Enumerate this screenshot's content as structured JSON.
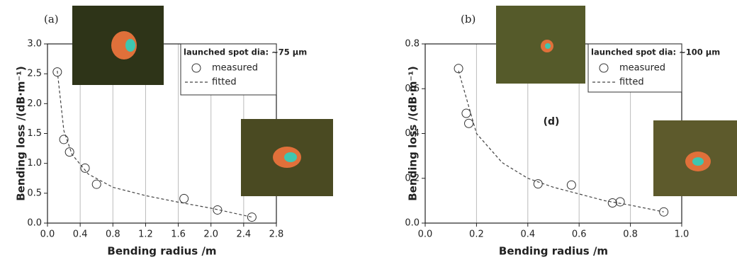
{
  "chart_data": [
    {
      "type": "scatter",
      "panel_label": "(a)",
      "xlabel": "Bending radius  /m",
      "ylabel": "Bending loss  /(dB·m⁻¹)",
      "legend_title": "launched spot dia: ~75 μm",
      "xlim": [
        0,
        2.8
      ],
      "ylim": [
        0,
        3.0
      ],
      "xticks": [
        {
          "value": 0,
          "label": "0.0"
        },
        0.4,
        0.8,
        {
          "value": 1.2,
          "label": "1.2"
        },
        1.6,
        {
          "value": 2.0,
          "label": "2.0"
        },
        2.4,
        2.8
      ],
      "yticks": [
        {
          "value": 0,
          "label": "0.0"
        },
        0.5,
        {
          "value": 1.0,
          "label": "1.0"
        },
        1.5,
        {
          "value": 2.0,
          "label": "2.0"
        },
        2.5,
        {
          "value": 3.0,
          "label": "3.0"
        }
      ],
      "grid": "x",
      "series": [
        {
          "name": "measured",
          "kind": "points",
          "color": "#333333",
          "x": [
            0.12,
            0.2,
            0.27,
            0.46,
            0.6,
            1.67,
            2.08,
            2.5
          ],
          "values": [
            2.53,
            1.4,
            1.19,
            0.92,
            0.65,
            0.41,
            0.22,
            0.1
          ]
        },
        {
          "name": "fitted",
          "kind": "dashed-line",
          "color": "#444444",
          "x": [
            0.12,
            0.2,
            0.3,
            0.5,
            0.8,
            1.2,
            1.6,
            2.0,
            2.5
          ],
          "values": [
            2.55,
            1.55,
            1.15,
            0.82,
            0.6,
            0.46,
            0.35,
            0.25,
            0.1
          ]
        }
      ]
    },
    {
      "type": "scatter",
      "panel_label": "(b)",
      "xlabel": "Bending radius  /m",
      "ylabel": "Bending loss  /(dB·m⁻¹)",
      "legend_title": "launched spot dia: ~100 μm",
      "annotation": "(d)",
      "xlim": [
        0,
        1.0
      ],
      "ylim": [
        0,
        0.8
      ],
      "xticks": [
        {
          "value": 0,
          "label": "0.0"
        },
        0.2,
        0.4,
        0.6,
        0.8,
        {
          "value": 1.0,
          "label": "1.0"
        }
      ],
      "yticks": [
        {
          "value": 0,
          "label": "0.0"
        },
        0.2,
        0.4,
        0.6,
        0.8
      ],
      "grid": "x",
      "series": [
        {
          "name": "measured",
          "kind": "points",
          "color": "#333333",
          "x": [
            0.13,
            0.16,
            0.17,
            0.44,
            0.57,
            0.73,
            0.76,
            0.93
          ],
          "values": [
            0.69,
            0.49,
            0.445,
            0.175,
            0.17,
            0.09,
            0.095,
            0.05
          ]
        },
        {
          "name": "fitted",
          "kind": "dashed-line",
          "color": "#444444",
          "x": [
            0.13,
            0.2,
            0.3,
            0.4,
            0.5,
            0.6,
            0.7,
            0.8,
            0.93
          ],
          "values": [
            0.68,
            0.4,
            0.27,
            0.2,
            0.16,
            0.13,
            0.1,
            0.08,
            0.05
          ]
        }
      ]
    }
  ]
}
